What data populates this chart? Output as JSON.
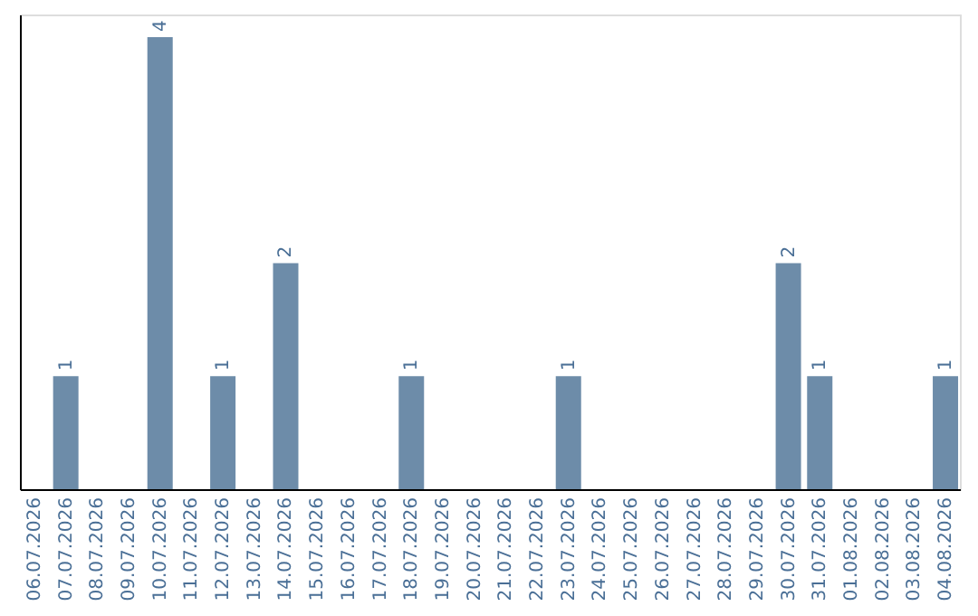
{
  "chart_data": {
    "type": "bar",
    "categories": [
      "06.07.2026",
      "07.07.2026",
      "08.07.2026",
      "09.07.2026",
      "10.07.2026",
      "11.07.2026",
      "12.07.2026",
      "13.07.2026",
      "14.07.2026",
      "15.07.2026",
      "16.07.2026",
      "17.07.2026",
      "18.07.2026",
      "19.07.2026",
      "20.07.2026",
      "21.07.2026",
      "22.07.2026",
      "23.07.2026",
      "24.07.2026",
      "25.07.2026",
      "26.07.2026",
      "27.07.2026",
      "28.07.2026",
      "29.07.2026",
      "30.07.2026",
      "31.07.2026",
      "01.08.2026",
      "02.08.2026",
      "03.08.2026",
      "04.08.2026"
    ],
    "values": [
      0,
      1,
      0,
      0,
      4,
      0,
      1,
      0,
      2,
      0,
      0,
      0,
      1,
      0,
      0,
      0,
      0,
      1,
      0,
      0,
      0,
      0,
      0,
      0,
      2,
      1,
      0,
      0,
      0,
      1
    ],
    "value_labels": [
      null,
      "1",
      null,
      null,
      "4",
      null,
      "1",
      null,
      "2",
      null,
      null,
      null,
      "1",
      null,
      null,
      null,
      null,
      "1",
      null,
      null,
      null,
      null,
      null,
      null,
      "2",
      "1",
      null,
      null,
      null,
      "1"
    ],
    "color": "#6d8ca9",
    "ylim": [
      0,
      4.2
    ],
    "tick_labels": "x",
    "grid": false
  }
}
